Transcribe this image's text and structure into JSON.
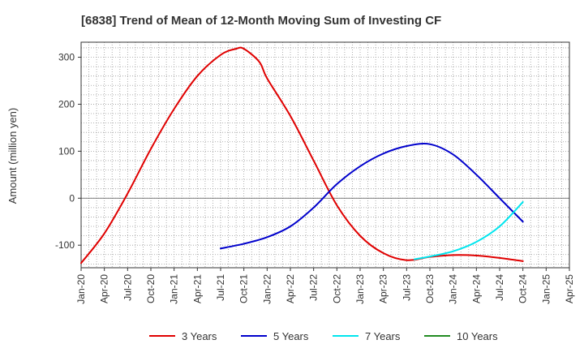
{
  "chart_data": {
    "type": "line",
    "title": "[6838]  Trend of Mean of 12-Month Moving Sum of Investing CF",
    "ylabel": "Amount (million yen)",
    "xlabel": "",
    "x_ticks": [
      "Jan-20",
      "Apr-20",
      "Jul-20",
      "Oct-20",
      "Jan-21",
      "Apr-21",
      "Jul-21",
      "Oct-21",
      "Jan-22",
      "Apr-22",
      "Jul-22",
      "Oct-22",
      "Jan-23",
      "Apr-23",
      "Jul-23",
      "Oct-23",
      "Jan-24",
      "Apr-24",
      "Jul-24",
      "Oct-24",
      "Jan-25",
      "Apr-25"
    ],
    "xlim": [
      "2020-01",
      "2025-04"
    ],
    "y_ticks": [
      -100,
      0,
      100,
      200,
      300
    ],
    "ylim": [
      -148,
      332
    ],
    "grid": true,
    "legend_position": "bottom",
    "series": [
      {
        "name": "3 Years",
        "color": "#e00000",
        "x": [
          "2020-01",
          "2020-04",
          "2020-07",
          "2020-10",
          "2021-01",
          "2021-04",
          "2021-07",
          "2021-09",
          "2021-10",
          "2021-12",
          "2022-01",
          "2022-04",
          "2022-07",
          "2022-10",
          "2023-01",
          "2023-04",
          "2023-07",
          "2023-10",
          "2024-01",
          "2024-04",
          "2024-07",
          "2024-10"
        ],
        "values": [
          -138,
          -75,
          10,
          105,
          190,
          260,
          305,
          318,
          318,
          290,
          255,
          175,
          80,
          -15,
          -80,
          -117,
          -132,
          -125,
          -121,
          -122,
          -127,
          -134
        ]
      },
      {
        "name": "5 Years",
        "color": "#0000cc",
        "x": [
          "2021-07",
          "2021-10",
          "2022-01",
          "2022-04",
          "2022-07",
          "2022-10",
          "2023-01",
          "2023-04",
          "2023-07",
          "2023-10",
          "2024-01",
          "2024-04",
          "2024-07",
          "2024-10"
        ],
        "values": [
          -107,
          -97,
          -83,
          -60,
          -20,
          30,
          68,
          95,
          111,
          115,
          93,
          50,
          0,
          -50
        ]
      },
      {
        "name": "7 Years",
        "color": "#00e5ee",
        "x": [
          "2023-08",
          "2023-10",
          "2024-01",
          "2024-04",
          "2024-07",
          "2024-10"
        ],
        "values": [
          -130,
          -124,
          -113,
          -93,
          -60,
          -8
        ]
      },
      {
        "name": "10 Years",
        "color": "#228b22",
        "x": [],
        "values": []
      }
    ]
  }
}
